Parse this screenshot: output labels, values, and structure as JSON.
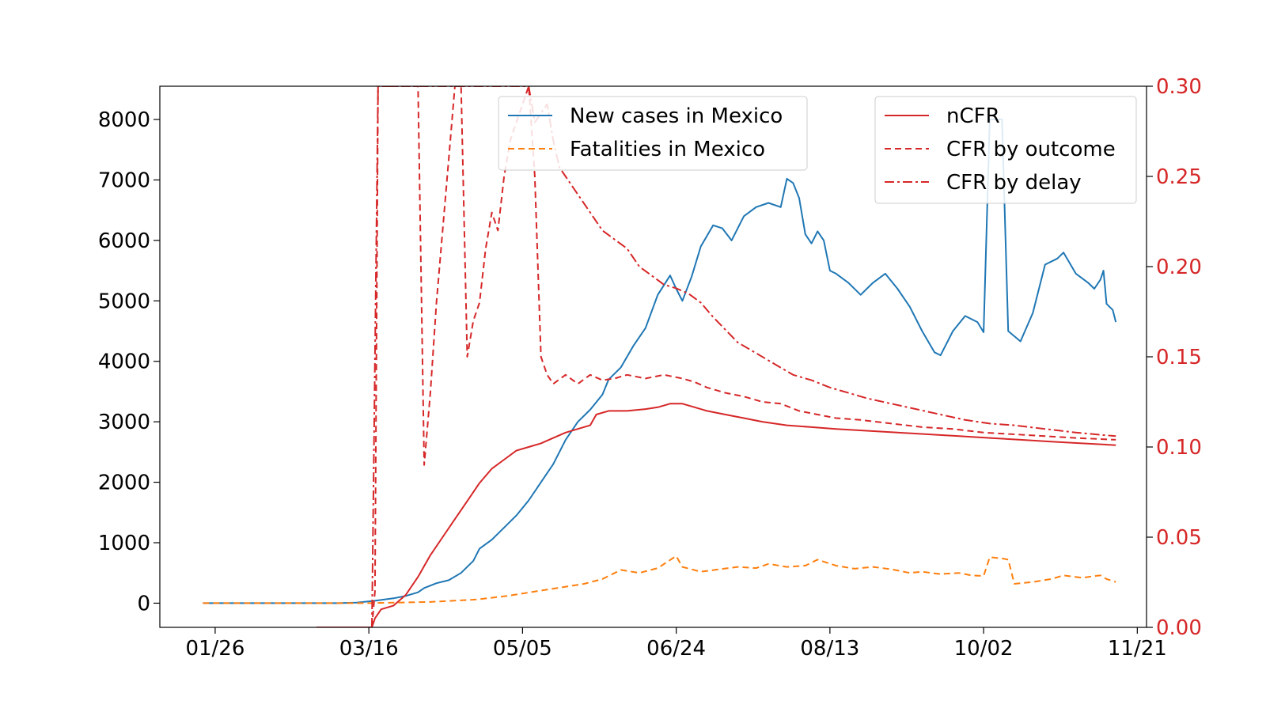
{
  "chart_data": {
    "type": "line",
    "title": "",
    "xlabel": "",
    "ylabel": "",
    "x_ticks": [
      "01/26",
      "03/16",
      "05/05",
      "06/24",
      "08/13",
      "10/02",
      "11/21"
    ],
    "x_tick_offsets_days": [
      0,
      50,
      100,
      150,
      200,
      250,
      300
    ],
    "xlim_days": [
      -18,
      303
    ],
    "left_axis": {
      "ylim": [
        -400,
        8550
      ],
      "ticks": [
        "0",
        "1000",
        "2000",
        "3000",
        "4000",
        "5000",
        "6000",
        "7000",
        "8000"
      ],
      "tick_values": [
        0,
        1000,
        2000,
        3000,
        4000,
        5000,
        6000,
        7000,
        8000
      ],
      "color": "#000000"
    },
    "right_axis": {
      "ylim": [
        0.0,
        0.3
      ],
      "ticks": [
        "0.00",
        "0.05",
        "0.10",
        "0.15",
        "0.20",
        "0.25",
        "0.30"
      ],
      "tick_values": [
        0.0,
        0.05,
        0.1,
        0.15,
        0.2,
        0.25,
        0.3
      ],
      "color": "#d62728"
    },
    "legend_left": {
      "placement": "upper-center",
      "entries": [
        "New cases in Mexico",
        "Fatalities in Mexico"
      ]
    },
    "legend_right": {
      "placement": "upper-right",
      "entries": [
        "nCFR",
        "CFR by outcome",
        "CFR by delay"
      ]
    },
    "series": [
      {
        "name": "New cases in Mexico",
        "axis": "left",
        "color": "#1f77b4",
        "style": "solid",
        "points": [
          [
            -4,
            0
          ],
          [
            40,
            0
          ],
          [
            46,
            10
          ],
          [
            52,
            40
          ],
          [
            58,
            80
          ],
          [
            62,
            120
          ],
          [
            66,
            180
          ],
          [
            68,
            250
          ],
          [
            72,
            330
          ],
          [
            76,
            380
          ],
          [
            80,
            500
          ],
          [
            84,
            700
          ],
          [
            86,
            900
          ],
          [
            90,
            1050
          ],
          [
            94,
            1250
          ],
          [
            98,
            1450
          ],
          [
            102,
            1700
          ],
          [
            106,
            2000
          ],
          [
            110,
            2300
          ],
          [
            114,
            2700
          ],
          [
            118,
            3000
          ],
          [
            122,
            3200
          ],
          [
            126,
            3450
          ],
          [
            128,
            3700
          ],
          [
            132,
            3900
          ],
          [
            136,
            4250
          ],
          [
            140,
            4550
          ],
          [
            144,
            5100
          ],
          [
            148,
            5420
          ],
          [
            150,
            5200
          ],
          [
            152,
            5000
          ],
          [
            155,
            5400
          ],
          [
            158,
            5900
          ],
          [
            162,
            6250
          ],
          [
            165,
            6200
          ],
          [
            168,
            6000
          ],
          [
            172,
            6400
          ],
          [
            176,
            6550
          ],
          [
            180,
            6620
          ],
          [
            184,
            6550
          ],
          [
            186,
            7020
          ],
          [
            188,
            6950
          ],
          [
            190,
            6700
          ],
          [
            192,
            6100
          ],
          [
            194,
            5950
          ],
          [
            196,
            6150
          ],
          [
            198,
            6000
          ],
          [
            200,
            5500
          ],
          [
            202,
            5450
          ],
          [
            206,
            5300
          ],
          [
            210,
            5100
          ],
          [
            214,
            5300
          ],
          [
            218,
            5450
          ],
          [
            222,
            5200
          ],
          [
            226,
            4900
          ],
          [
            230,
            4500
          ],
          [
            234,
            4150
          ],
          [
            236,
            4100
          ],
          [
            240,
            4500
          ],
          [
            244,
            4750
          ],
          [
            248,
            4650
          ],
          [
            250,
            4480
          ],
          [
            252,
            8000
          ],
          [
            256,
            8000
          ],
          [
            258,
            4500
          ],
          [
            262,
            4330
          ],
          [
            266,
            4800
          ],
          [
            270,
            5600
          ],
          [
            274,
            5700
          ],
          [
            276,
            5800
          ],
          [
            280,
            5450
          ],
          [
            284,
            5300
          ],
          [
            286,
            5200
          ],
          [
            288,
            5350
          ],
          [
            289,
            5500
          ],
          [
            290,
            4950
          ],
          [
            292,
            4850
          ],
          [
            293,
            4650
          ]
        ]
      },
      {
        "name": "Fatalities in Mexico",
        "axis": "left",
        "color": "#ff7f0e",
        "style": "dashed",
        "points": [
          [
            -4,
            0
          ],
          [
            50,
            0
          ],
          [
            70,
            20
          ],
          [
            85,
            60
          ],
          [
            95,
            120
          ],
          [
            105,
            200
          ],
          [
            115,
            280
          ],
          [
            120,
            320
          ],
          [
            126,
            400
          ],
          [
            132,
            550
          ],
          [
            138,
            500
          ],
          [
            144,
            580
          ],
          [
            150,
            780
          ],
          [
            152,
            600
          ],
          [
            158,
            520
          ],
          [
            164,
            560
          ],
          [
            170,
            600
          ],
          [
            176,
            580
          ],
          [
            180,
            650
          ],
          [
            186,
            600
          ],
          [
            192,
            620
          ],
          [
            196,
            720
          ],
          [
            202,
            620
          ],
          [
            208,
            570
          ],
          [
            214,
            600
          ],
          [
            220,
            560
          ],
          [
            226,
            500
          ],
          [
            230,
            520
          ],
          [
            236,
            480
          ],
          [
            242,
            500
          ],
          [
            246,
            460
          ],
          [
            250,
            450
          ],
          [
            252,
            760
          ],
          [
            256,
            740
          ],
          [
            258,
            720
          ],
          [
            260,
            320
          ],
          [
            266,
            350
          ],
          [
            272,
            400
          ],
          [
            276,
            460
          ],
          [
            282,
            420
          ],
          [
            288,
            460
          ],
          [
            290,
            400
          ],
          [
            293,
            350
          ]
        ]
      },
      {
        "name": "nCFR",
        "axis": "right",
        "color": "#d62728",
        "style": "solid",
        "points": [
          [
            33,
            0.0
          ],
          [
            51,
            0.0
          ],
          [
            52,
            0.005
          ],
          [
            54,
            0.01
          ],
          [
            58,
            0.012
          ],
          [
            62,
            0.018
          ],
          [
            66,
            0.028
          ],
          [
            70,
            0.04
          ],
          [
            74,
            0.05
          ],
          [
            78,
            0.06
          ],
          [
            82,
            0.07
          ],
          [
            86,
            0.08
          ],
          [
            90,
            0.088
          ],
          [
            94,
            0.093
          ],
          [
            98,
            0.098
          ],
          [
            102,
            0.1
          ],
          [
            106,
            0.102
          ],
          [
            110,
            0.105
          ],
          [
            114,
            0.108
          ],
          [
            118,
            0.11
          ],
          [
            122,
            0.112
          ],
          [
            124,
            0.118
          ],
          [
            128,
            0.12
          ],
          [
            134,
            0.12
          ],
          [
            140,
            0.121
          ],
          [
            144,
            0.122
          ],
          [
            148,
            0.124
          ],
          [
            152,
            0.124
          ],
          [
            156,
            0.122
          ],
          [
            160,
            0.12
          ],
          [
            166,
            0.118
          ],
          [
            172,
            0.116
          ],
          [
            178,
            0.114
          ],
          [
            186,
            0.112
          ],
          [
            194,
            0.111
          ],
          [
            202,
            0.11
          ],
          [
            212,
            0.109
          ],
          [
            222,
            0.108
          ],
          [
            232,
            0.107
          ],
          [
            242,
            0.106
          ],
          [
            252,
            0.105
          ],
          [
            262,
            0.104
          ],
          [
            272,
            0.103
          ],
          [
            282,
            0.102
          ],
          [
            293,
            0.101
          ]
        ]
      },
      {
        "name": "CFR by outcome",
        "axis": "right",
        "color": "#d62728",
        "style": "dashed",
        "points": [
          [
            51,
            0.0
          ],
          [
            52,
            0.02
          ],
          [
            53,
            0.3
          ],
          [
            66,
            0.3
          ],
          [
            68,
            0.09
          ],
          [
            70,
            0.13
          ],
          [
            72,
            0.18
          ],
          [
            74,
            0.22
          ],
          [
            76,
            0.26
          ],
          [
            78,
            0.3
          ],
          [
            80,
            0.3
          ],
          [
            82,
            0.15
          ],
          [
            84,
            0.17
          ],
          [
            86,
            0.18
          ],
          [
            88,
            0.21
          ],
          [
            90,
            0.23
          ],
          [
            92,
            0.22
          ],
          [
            94,
            0.25
          ],
          [
            96,
            0.27
          ],
          [
            98,
            0.28
          ],
          [
            100,
            0.29
          ],
          [
            102,
            0.3
          ],
          [
            104,
            0.25
          ],
          [
            106,
            0.15
          ],
          [
            108,
            0.14
          ],
          [
            110,
            0.135
          ],
          [
            114,
            0.14
          ],
          [
            118,
            0.135
          ],
          [
            122,
            0.14
          ],
          [
            126,
            0.137
          ],
          [
            130,
            0.138
          ],
          [
            134,
            0.14
          ],
          [
            140,
            0.138
          ],
          [
            146,
            0.14
          ],
          [
            152,
            0.138
          ],
          [
            156,
            0.136
          ],
          [
            160,
            0.133
          ],
          [
            166,
            0.13
          ],
          [
            172,
            0.128
          ],
          [
            178,
            0.125
          ],
          [
            184,
            0.124
          ],
          [
            190,
            0.12
          ],
          [
            196,
            0.118
          ],
          [
            202,
            0.116
          ],
          [
            210,
            0.115
          ],
          [
            220,
            0.113
          ],
          [
            230,
            0.111
          ],
          [
            240,
            0.11
          ],
          [
            250,
            0.108
          ],
          [
            260,
            0.107
          ],
          [
            270,
            0.106
          ],
          [
            280,
            0.105
          ],
          [
            293,
            0.104
          ]
        ]
      },
      {
        "name": "CFR by delay",
        "axis": "right",
        "color": "#d62728",
        "style": "dashdot",
        "points": [
          [
            51,
            0.0
          ],
          [
            52,
            0.15
          ],
          [
            53,
            0.3
          ],
          [
            102,
            0.3
          ],
          [
            104,
            0.28
          ],
          [
            106,
            0.285
          ],
          [
            108,
            0.29
          ],
          [
            110,
            0.27
          ],
          [
            112,
            0.255
          ],
          [
            114,
            0.25
          ],
          [
            118,
            0.24
          ],
          [
            122,
            0.23
          ],
          [
            126,
            0.22
          ],
          [
            130,
            0.215
          ],
          [
            134,
            0.21
          ],
          [
            138,
            0.2
          ],
          [
            142,
            0.195
          ],
          [
            146,
            0.19
          ],
          [
            150,
            0.188
          ],
          [
            154,
            0.185
          ],
          [
            158,
            0.18
          ],
          [
            162,
            0.172
          ],
          [
            166,
            0.165
          ],
          [
            170,
            0.158
          ],
          [
            176,
            0.152
          ],
          [
            182,
            0.146
          ],
          [
            188,
            0.14
          ],
          [
            194,
            0.137
          ],
          [
            200,
            0.133
          ],
          [
            206,
            0.13
          ],
          [
            212,
            0.127
          ],
          [
            220,
            0.124
          ],
          [
            228,
            0.121
          ],
          [
            236,
            0.118
          ],
          [
            244,
            0.115
          ],
          [
            252,
            0.113
          ],
          [
            260,
            0.112
          ],
          [
            270,
            0.11
          ],
          [
            280,
            0.108
          ],
          [
            293,
            0.106
          ]
        ]
      }
    ]
  }
}
